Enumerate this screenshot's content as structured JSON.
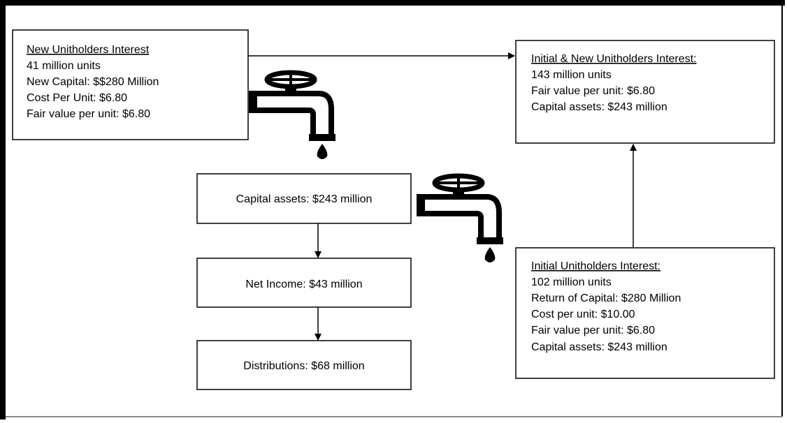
{
  "nodes": [
    {
      "title": "New Unitholders Interest",
      "lines": [
        "41 million units",
        "New Capital: $$280 Million",
        "Cost Per Unit: $6.80",
        "Fair value per unit: $6.80"
      ]
    },
    {
      "title": "Initial & New Unitholders Interest:",
      "lines": [
        "143 million units",
        "Fair value per unit: $6.80",
        "Capital assets: $243 million"
      ]
    },
    {
      "label": "Capital assets: $243 million"
    },
    {
      "label": "Net Income: $43 million"
    },
    {
      "label": "Distributions: $68 million"
    },
    {
      "title": "Initial Unitholders Interest:",
      "lines": [
        "102 million units",
        "Return of Capital: $280 Million",
        "Cost per unit: $10.00",
        "Fair value per unit: $6.80",
        "Capital assets: $243 million"
      ]
    }
  ]
}
